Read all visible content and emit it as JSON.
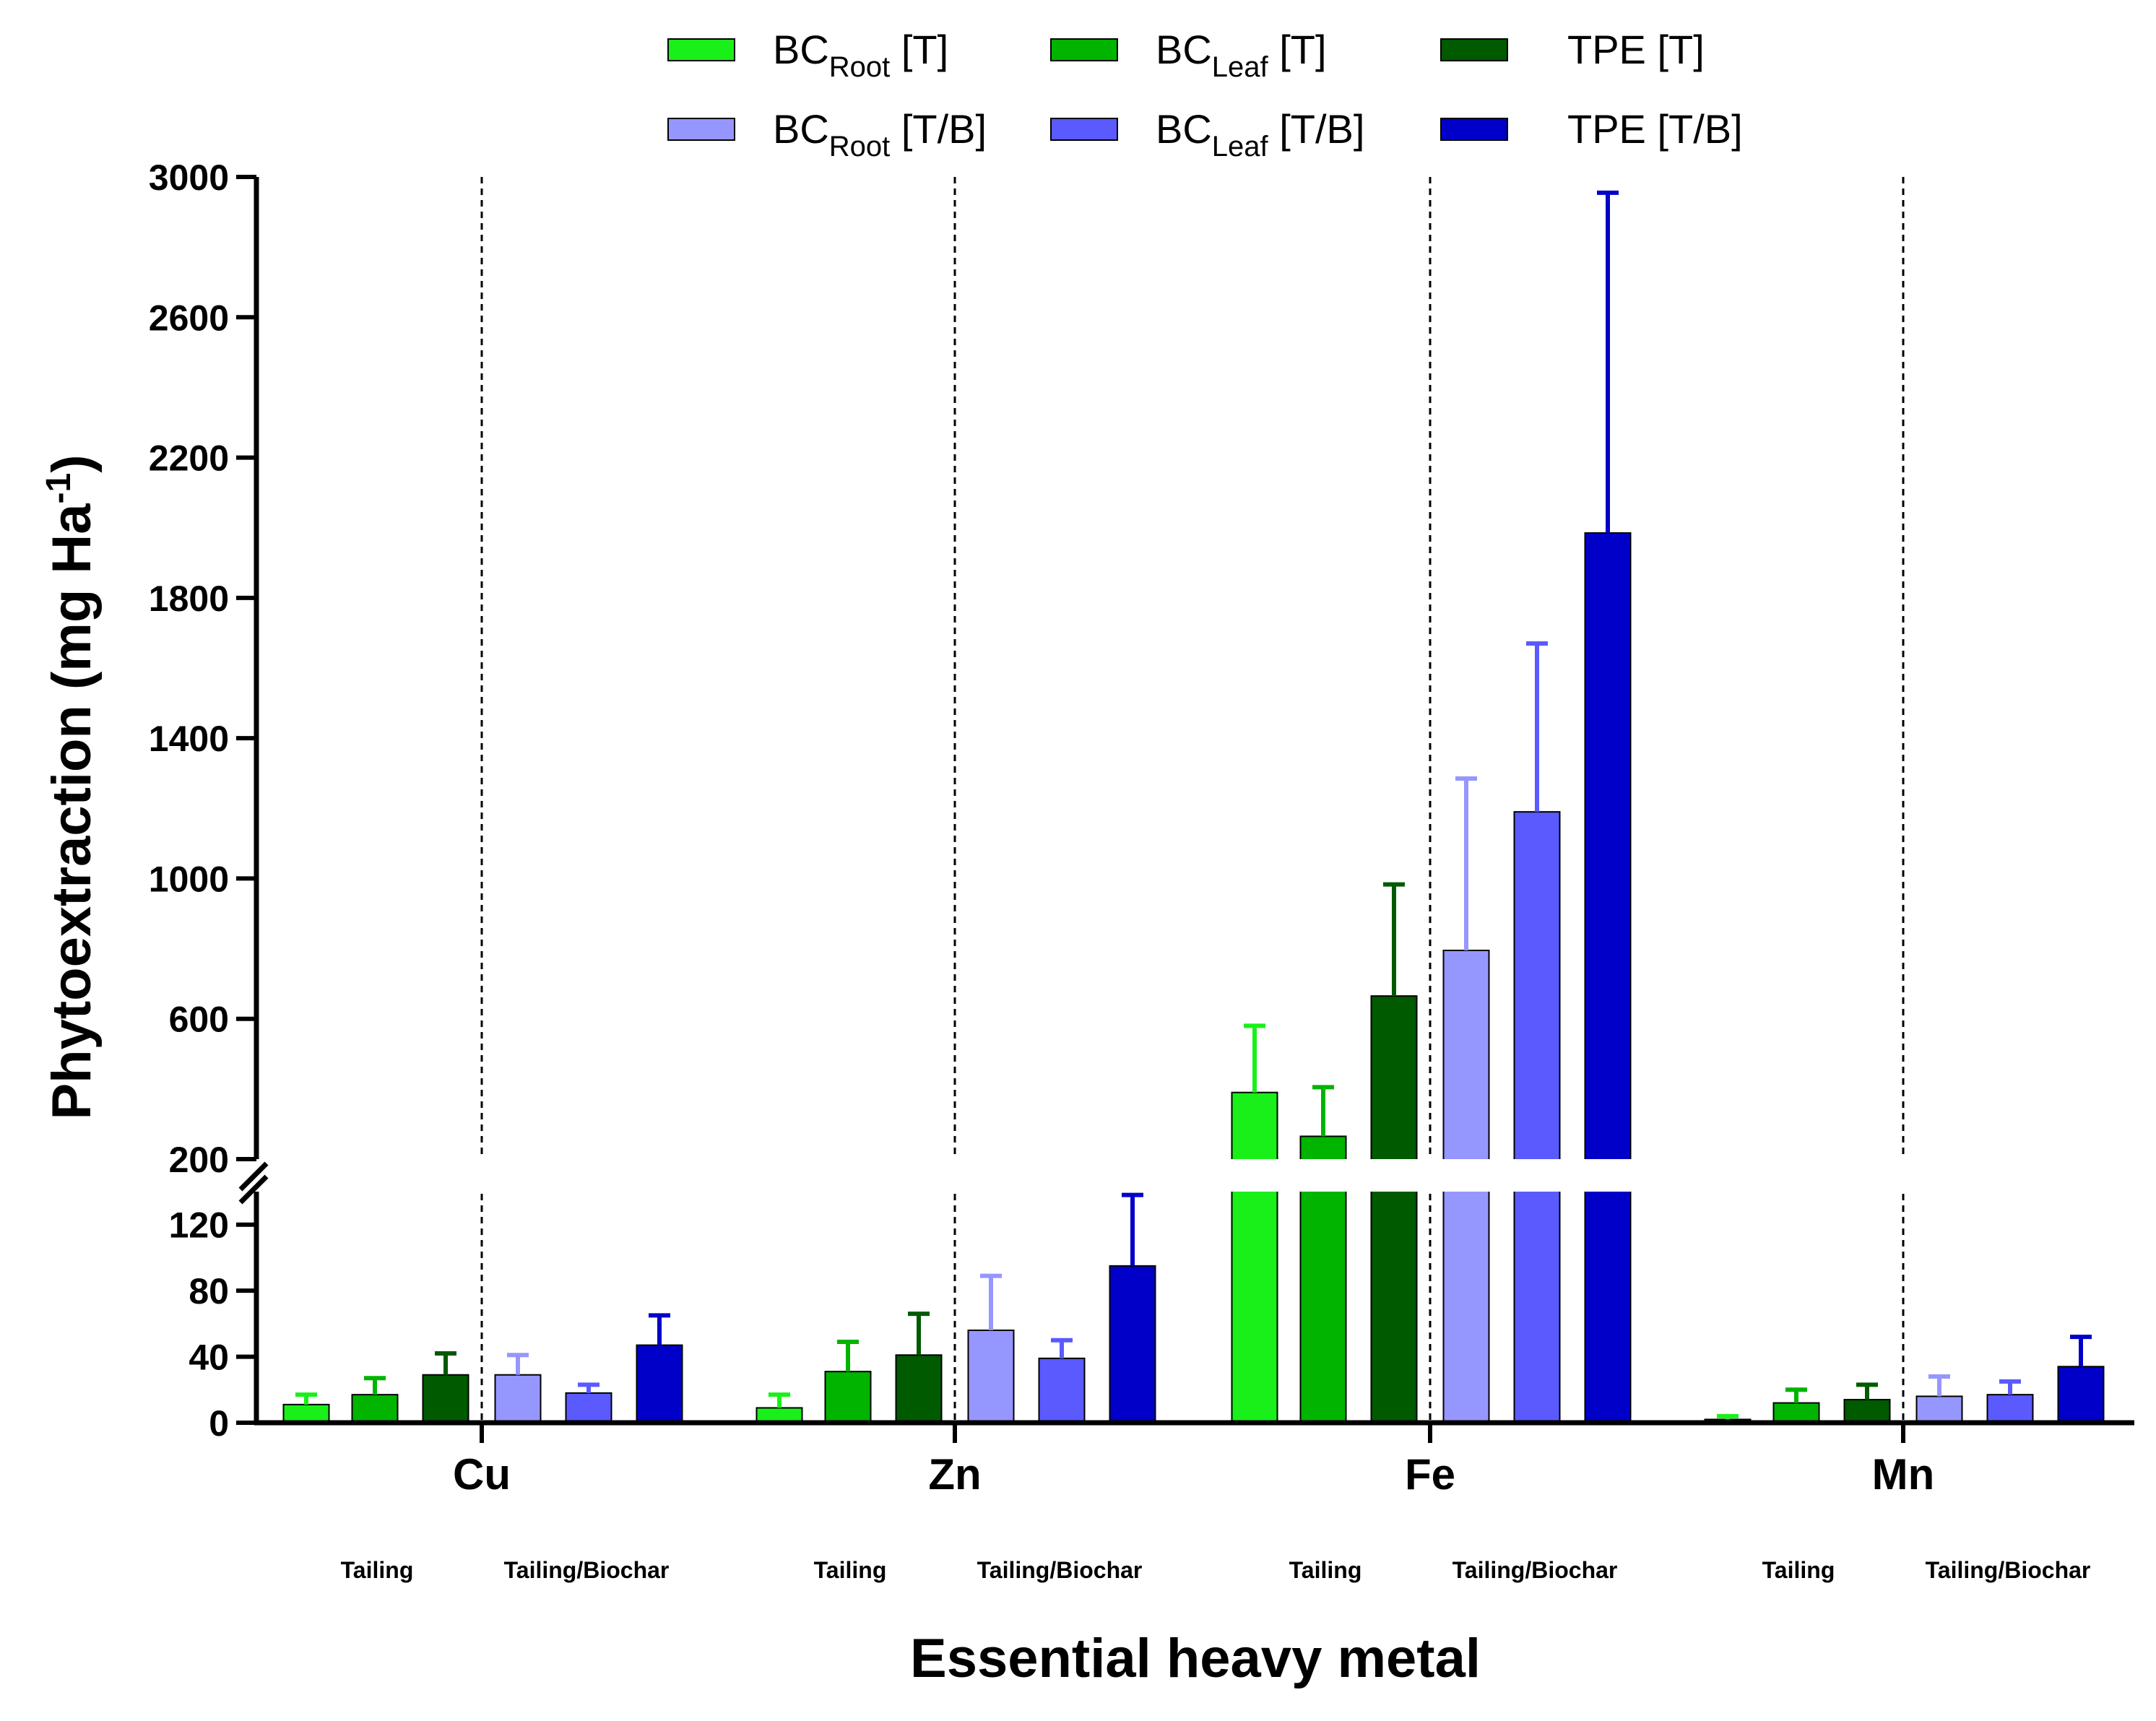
{
  "chart_data": {
    "type": "bar",
    "ylabel_main": "Phytoextraction (mg Ha",
    "ylabel_exponent": "-1",
    "ylabel_close": ")",
    "xlabel": "Essential heavy metal",
    "y_axis_segments": {
      "lower": {
        "range": [
          0,
          140
        ],
        "ticks": [
          0,
          40,
          80,
          120
        ]
      },
      "upper": {
        "range": [
          200,
          3000
        ],
        "ticks": [
          200,
          600,
          1000,
          1400,
          1800,
          2200,
          2600,
          3000
        ]
      }
    },
    "categories": [
      "Cu",
      "Zn",
      "Fe",
      "Mn"
    ],
    "groups": [
      "Tailing",
      "Tailing/Biochar"
    ],
    "series": [
      {
        "name": "BC",
        "sub": "Root",
        "suffix": " [T]",
        "color": "#19f019",
        "values": [
          11,
          9,
          390,
          2
        ],
        "errors": [
          6,
          8,
          190,
          2
        ]
      },
      {
        "name": "BC",
        "sub": "Leaf",
        "suffix": " [T]",
        "color": "#00b400",
        "values": [
          17,
          31,
          265,
          12
        ],
        "errors": [
          10,
          18,
          140,
          8
        ]
      },
      {
        "name": "TPE",
        "sub": "",
        "suffix": " [T]",
        "color": "#005a00",
        "values": [
          29,
          41,
          665,
          14
        ],
        "errors": [
          13,
          25,
          318,
          9
        ]
      },
      {
        "name": "BC",
        "sub": "Root",
        "suffix": " [T/B]",
        "color": "#9696ff",
        "values": [
          29,
          56,
          795,
          16
        ],
        "errors": [
          12,
          33,
          490,
          12
        ]
      },
      {
        "name": "BC",
        "sub": "Leaf",
        "suffix": " [T/B]",
        "color": "#5a5aff",
        "values": [
          18,
          39,
          1190,
          17
        ],
        "errors": [
          5,
          11,
          480,
          8
        ]
      },
      {
        "name": "TPE",
        "sub": "",
        "suffix": " [T/B]",
        "color": "#0000c8",
        "values": [
          47,
          95,
          1985,
          34
        ],
        "errors": [
          18,
          43,
          970,
          18
        ]
      }
    ]
  }
}
